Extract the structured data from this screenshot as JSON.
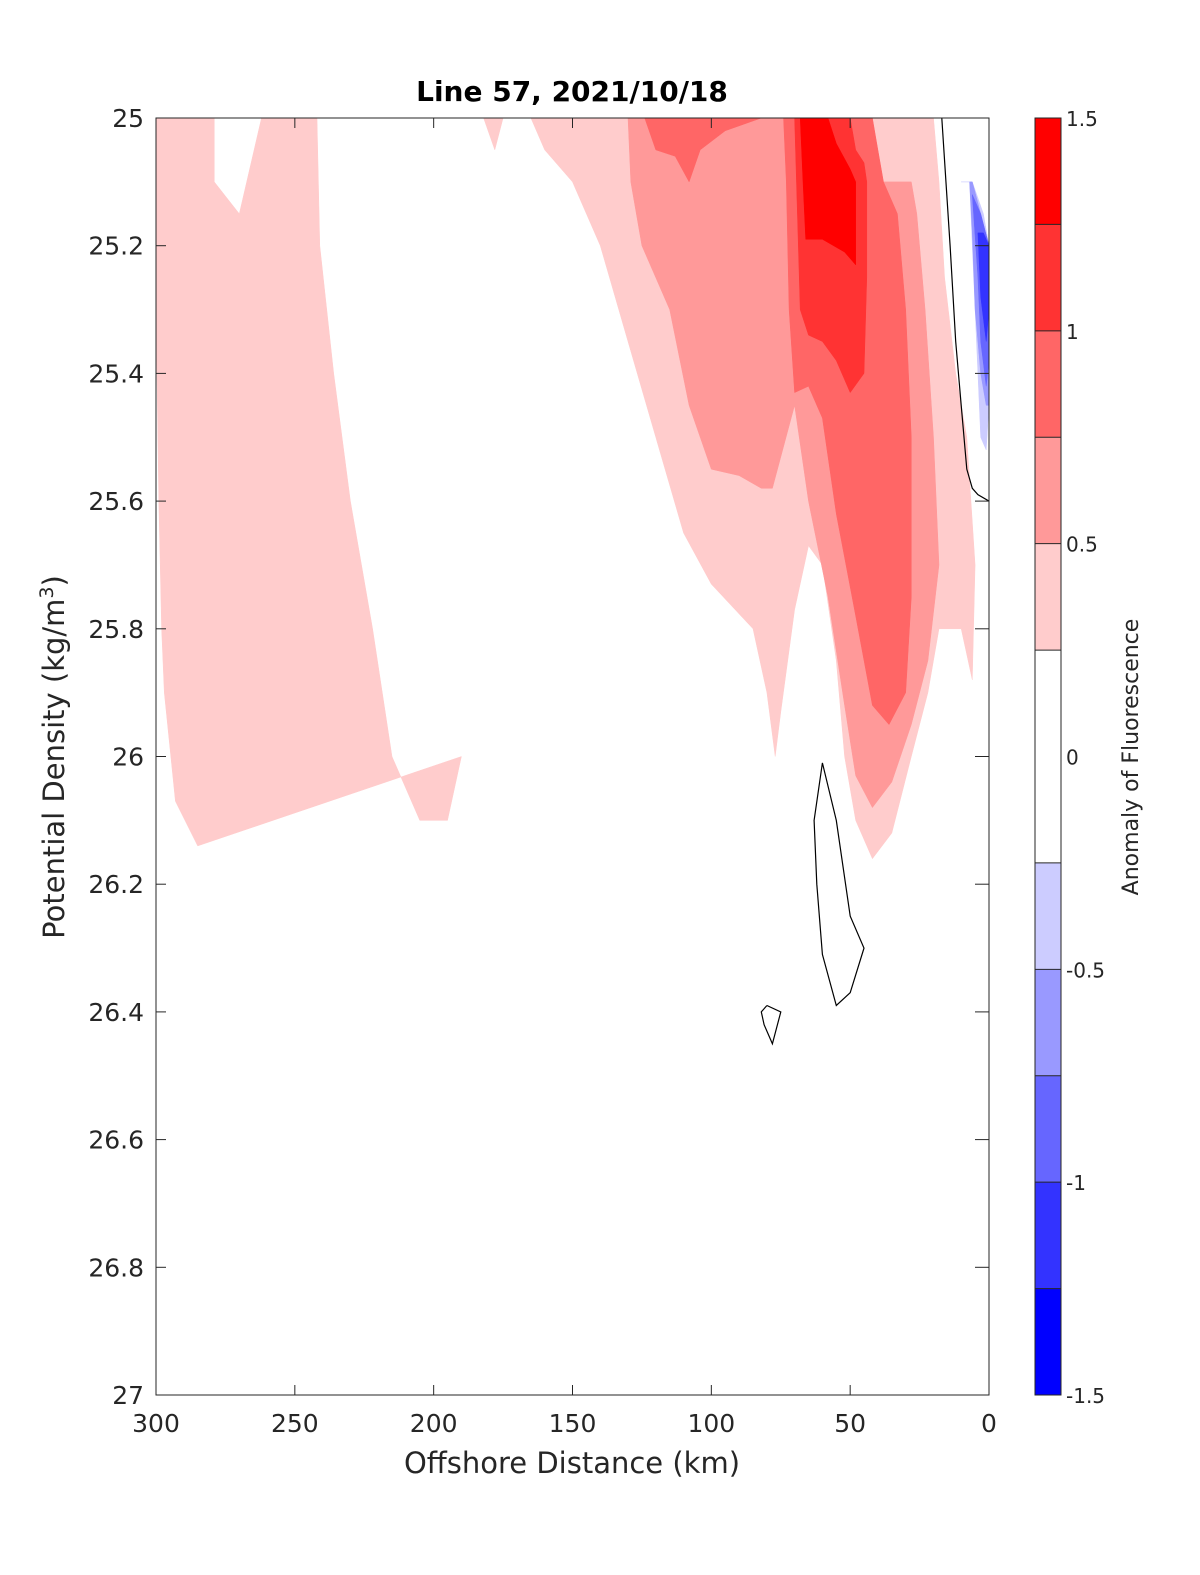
{
  "chart_data": {
    "type": "heatmap",
    "subtype": "filled-contour",
    "title": "Line 57, 2021/10/18",
    "xlabel": "Offshore Distance (km)",
    "ylabel_main": "Potential Density (kg/m",
    "ylabel_sup": "3",
    "ylabel_end": ")",
    "xlim": [
      300,
      0
    ],
    "x_reversed": true,
    "ylim": [
      25,
      27
    ],
    "y_reversed": true,
    "xticks": [
      300,
      250,
      200,
      150,
      100,
      50,
      0
    ],
    "xtick_labels": [
      "300",
      "250",
      "200",
      "150",
      "100",
      "50",
      "0"
    ],
    "yticks": [
      25,
      25.2,
      25.4,
      25.6,
      25.8,
      26,
      26.2,
      26.4,
      26.6,
      26.8,
      27
    ],
    "ytick_labels": [
      "25",
      "25.2",
      "25.4",
      "25.6",
      "25.8",
      "26",
      "26.2",
      "26.4",
      "26.6",
      "26.8",
      "27"
    ],
    "grid": false,
    "colorbar": {
      "label": "Anomaly of Fluorescence",
      "range": [
        -1.5,
        1.5
      ],
      "tick_values": [
        1.5,
        1,
        0.5,
        0,
        -0.5,
        -1,
        -1.5
      ],
      "tick_labels": [
        "1.5",
        "1",
        "0.5",
        "0",
        "-0.5",
        "-1",
        "-1.5"
      ],
      "levels": [
        {
          "from": 1.25,
          "to": 1.5,
          "color": "#ff0000"
        },
        {
          "from": 1.0,
          "to": 1.25,
          "color": "#ff3333"
        },
        {
          "from": 0.75,
          "to": 1.0,
          "color": "#ff6666"
        },
        {
          "from": 0.5,
          "to": 0.75,
          "color": "#ff9999"
        },
        {
          "from": 0.25,
          "to": 0.5,
          "color": "#ffcccc"
        },
        {
          "from": -0.25,
          "to": 0.25,
          "color": "#ffffff"
        },
        {
          "from": -0.5,
          "to": -0.25,
          "color": "#ccccff"
        },
        {
          "from": -0.75,
          "to": -0.5,
          "color": "#9999ff"
        },
        {
          "from": -1.0,
          "to": -0.75,
          "color": "#6666ff"
        },
        {
          "from": -1.25,
          "to": -1.0,
          "color": "#3333ff"
        },
        {
          "from": -1.5,
          "to": -1.25,
          "color": "#0000ff"
        }
      ]
    },
    "regions": [
      {
        "level": 0.25,
        "color": "#ffcccc",
        "points": [
          [
            300,
            25
          ],
          [
            279,
            25
          ],
          [
            279,
            25.1
          ],
          [
            270,
            25.15
          ],
          [
            262,
            25
          ],
          [
            250,
            25
          ],
          [
            242,
            25
          ],
          [
            241,
            25.2
          ],
          [
            236,
            25.4
          ],
          [
            230,
            25.6
          ],
          [
            222,
            25.8
          ],
          [
            215,
            26.0
          ],
          [
            205,
            26.1
          ],
          [
            195,
            26.1
          ],
          [
            190,
            26.0
          ],
          [
            285,
            26.14
          ],
          [
            293,
            26.07
          ],
          [
            297,
            25.9
          ],
          [
            298,
            25.8
          ],
          [
            299,
            25.6
          ],
          [
            300,
            25.3
          ]
        ]
      },
      {
        "level": 0.25,
        "color": "#ffcccc",
        "points": [
          [
            180,
            25
          ],
          [
            165,
            25
          ],
          [
            160,
            25.05
          ],
          [
            150,
            25.1
          ],
          [
            140,
            25.2
          ],
          [
            130,
            25.35
          ],
          [
            120,
            25.5
          ],
          [
            110,
            25.65
          ],
          [
            100,
            25.73
          ],
          [
            85,
            25.8
          ],
          [
            80,
            25.9
          ],
          [
            77,
            26.0
          ],
          [
            75,
            25.93
          ],
          [
            70,
            25.77
          ],
          [
            65,
            25.67
          ],
          [
            60,
            25.7
          ],
          [
            55,
            25.85
          ],
          [
            52,
            26.0
          ],
          [
            48,
            26.1
          ],
          [
            42,
            26.16
          ],
          [
            35,
            26.12
          ],
          [
            28,
            26.0
          ],
          [
            22,
            25.9
          ],
          [
            18,
            25.8
          ],
          [
            10,
            25.8
          ],
          [
            6,
            25.88
          ],
          [
            5,
            25.7
          ],
          [
            8,
            25.5
          ],
          [
            12,
            25.4
          ],
          [
            16,
            25.25
          ],
          [
            18,
            25.1
          ],
          [
            20,
            25
          ],
          [
            60,
            25
          ],
          [
            100,
            25
          ],
          [
            130,
            25
          ]
        ]
      },
      {
        "level": 0.25,
        "color": "#ffcccc",
        "points": [
          [
            182,
            25
          ],
          [
            178,
            25.05
          ],
          [
            175,
            25
          ],
          [
            182,
            25
          ]
        ]
      },
      {
        "level": 0.5,
        "color": "#ff9999",
        "points": [
          [
            130,
            25
          ],
          [
            129,
            25.1
          ],
          [
            125,
            25.2
          ],
          [
            115,
            25.3
          ],
          [
            108,
            25.45
          ],
          [
            100,
            25.55
          ],
          [
            90,
            25.56
          ],
          [
            82,
            25.58
          ],
          [
            78,
            25.58
          ],
          [
            70,
            25.45
          ],
          [
            65,
            25.6
          ],
          [
            58,
            25.75
          ],
          [
            52,
            25.92
          ],
          [
            48,
            26.03
          ],
          [
            42,
            26.08
          ],
          [
            35,
            26.04
          ],
          [
            28,
            25.95
          ],
          [
            22,
            25.85
          ],
          [
            18,
            25.7
          ],
          [
            20,
            25.5
          ],
          [
            23,
            25.3
          ],
          [
            26,
            25.15
          ],
          [
            28,
            25.1
          ],
          [
            38,
            25.1
          ],
          [
            44,
            25.05
          ],
          [
            46,
            25
          ],
          [
            60,
            25
          ],
          [
            100,
            25
          ]
        ]
      },
      {
        "level": 0.75,
        "color": "#ff6666",
        "points": [
          [
            124,
            25
          ],
          [
            120,
            25.05
          ],
          [
            113,
            25.06
          ],
          [
            108,
            25.1
          ],
          [
            104,
            25.05
          ],
          [
            95,
            25.02
          ],
          [
            82,
            25
          ],
          [
            74,
            25
          ],
          [
            73,
            25.1
          ],
          [
            72,
            25.3
          ],
          [
            70,
            25.43
          ],
          [
            65,
            25.42
          ],
          [
            60,
            25.47
          ],
          [
            55,
            25.62
          ],
          [
            48,
            25.78
          ],
          [
            42,
            25.92
          ],
          [
            36,
            25.95
          ],
          [
            30,
            25.9
          ],
          [
            28,
            25.75
          ],
          [
            28,
            25.5
          ],
          [
            30,
            25.3
          ],
          [
            33,
            25.15
          ],
          [
            38,
            25.1
          ],
          [
            40,
            25.05
          ],
          [
            42,
            25
          ],
          [
            60,
            25
          ]
        ]
      },
      {
        "level": 1.0,
        "color": "#ff3333",
        "points": [
          [
            70,
            25
          ],
          [
            69,
            25.15
          ],
          [
            68,
            25.3
          ],
          [
            65,
            25.34
          ],
          [
            60,
            25.35
          ],
          [
            55,
            25.38
          ],
          [
            50,
            25.43
          ],
          [
            45,
            25.4
          ],
          [
            44,
            25.25
          ],
          [
            44,
            25.1
          ],
          [
            45,
            25.07
          ],
          [
            48,
            25.05
          ],
          [
            50,
            25
          ],
          [
            60,
            25
          ]
        ]
      },
      {
        "level": 1.25,
        "color": "#ff0000",
        "points": [
          [
            68,
            25
          ],
          [
            67,
            25.1
          ],
          [
            66,
            25.19
          ],
          [
            60,
            25.19
          ],
          [
            52,
            25.21
          ],
          [
            48,
            25.23
          ],
          [
            48,
            25.1
          ],
          [
            50,
            25.08
          ],
          [
            55,
            25.04
          ],
          [
            58,
            25
          ],
          [
            62,
            25
          ]
        ]
      },
      {
        "level": -0.25,
        "color": "#ccccff",
        "points": [
          [
            10,
            25.1
          ],
          [
            7,
            25.1
          ],
          [
            6,
            25.2
          ],
          [
            5,
            25.3
          ],
          [
            4,
            25.4
          ],
          [
            3,
            25.5
          ],
          [
            1,
            25.52
          ],
          [
            0,
            25.45
          ],
          [
            0,
            25.2
          ],
          [
            2,
            25.15
          ],
          [
            6,
            25.1
          ]
        ]
      },
      {
        "level": -0.5,
        "color": "#9999ff",
        "points": [
          [
            7,
            25.1
          ],
          [
            6,
            25.18
          ],
          [
            5,
            25.3
          ],
          [
            3,
            25.4
          ],
          [
            1,
            25.45
          ],
          [
            0,
            25.45
          ],
          [
            0,
            25.2
          ],
          [
            3,
            25.15
          ],
          [
            6,
            25.1
          ]
        ]
      },
      {
        "level": -0.75,
        "color": "#6666ff",
        "points": [
          [
            6,
            25.12
          ],
          [
            4,
            25.25
          ],
          [
            3,
            25.35
          ],
          [
            1,
            25.42
          ],
          [
            0,
            25.38
          ],
          [
            0,
            25.2
          ],
          [
            3,
            25.15
          ]
        ]
      },
      {
        "level": -1.0,
        "color": "#3333ff",
        "points": [
          [
            4,
            25.18
          ],
          [
            3,
            25.28
          ],
          [
            1,
            25.35
          ],
          [
            0,
            25.3
          ],
          [
            0,
            25.2
          ],
          [
            2,
            25.18
          ]
        ]
      }
    ],
    "contour_lines": [
      {
        "level": 0,
        "points": [
          [
            17,
            25
          ],
          [
            14,
            25.2
          ],
          [
            12,
            25.35
          ],
          [
            10,
            25.45
          ],
          [
            8,
            25.55
          ],
          [
            6,
            25.58
          ],
          [
            4,
            25.59
          ],
          [
            0,
            25.6
          ]
        ]
      },
      {
        "level": 0,
        "points": [
          [
            60,
            26.01
          ],
          [
            55,
            26.1
          ],
          [
            50,
            26.25
          ],
          [
            45,
            26.3
          ],
          [
            50,
            26.37
          ],
          [
            55,
            26.39
          ],
          [
            60,
            26.31
          ],
          [
            62,
            26.2
          ],
          [
            63,
            26.1
          ],
          [
            60,
            26.01
          ]
        ]
      },
      {
        "level": 0,
        "points": [
          [
            80,
            26.39
          ],
          [
            75,
            26.4
          ],
          [
            78,
            26.45
          ],
          [
            81,
            26.42
          ],
          [
            82,
            26.4
          ],
          [
            80,
            26.39
          ]
        ]
      }
    ]
  }
}
